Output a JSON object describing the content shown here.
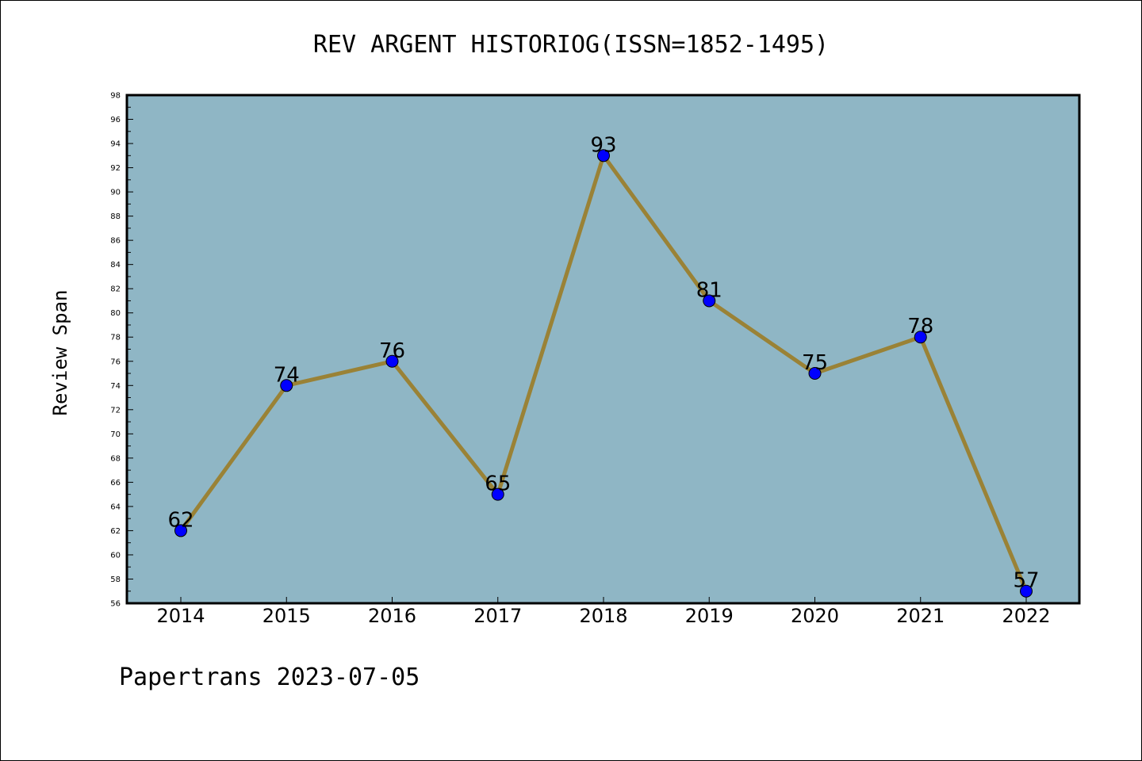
{
  "chart_data": {
    "type": "line",
    "title": "REV ARGENT HISTORIOG(ISSN=1852-1495)",
    "ylabel": "Review Span",
    "xlabel": "",
    "categories": [
      "2014",
      "2015",
      "2016",
      "2017",
      "2018",
      "2019",
      "2020",
      "2021",
      "2022"
    ],
    "series": [
      {
        "values": [
          62,
          74,
          76,
          65,
          93,
          81,
          75,
          78,
          57
        ]
      }
    ],
    "ylim": [
      56,
      98
    ],
    "yticks": [
      56,
      58,
      60,
      62,
      64,
      66,
      68,
      70,
      72,
      74,
      76,
      78,
      80,
      82,
      84,
      86,
      88,
      90,
      92,
      94,
      96,
      98
    ],
    "data_labels": true,
    "grid": false,
    "legend": "none",
    "colors": {
      "plot_background": "#8fb6c5",
      "line": "#9a8236",
      "marker": "#0000ff"
    }
  },
  "footer": "Papertrans 2023-07-05"
}
